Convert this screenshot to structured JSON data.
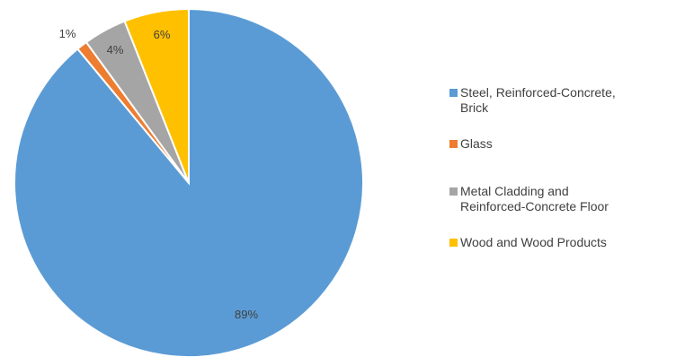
{
  "chart_data": {
    "type": "pie",
    "title": "",
    "slices": [
      {
        "label": "Steel, Reinforced-Concrete, Brick",
        "value": 89,
        "data_label": "89%",
        "color": "#5B9BD5"
      },
      {
        "label": "Glass",
        "value": 1,
        "data_label": "1%",
        "color": "#ED7D31"
      },
      {
        "label": "Metal Cladding and Reinforced-Concrete Floor",
        "value": 4,
        "data_label": "4%",
        "color": "#A5A5A5"
      },
      {
        "label": "Wood and Wood Products",
        "value": 6,
        "data_label": "6%",
        "color": "#FFC000"
      }
    ],
    "legend_position": "right",
    "legend_lines": [
      [
        "Steel, Reinforced-Concrete,",
        "Brick"
      ],
      [
        "Glass"
      ],
      [
        "Metal Cladding and",
        "Reinforced-Concrete Floor"
      ],
      [
        "Wood and Wood Products"
      ]
    ]
  }
}
